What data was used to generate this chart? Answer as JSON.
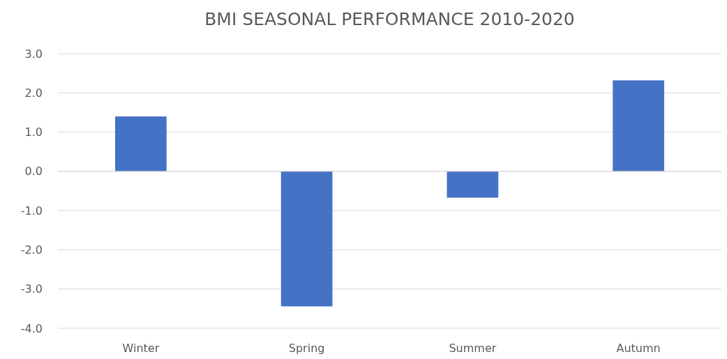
{
  "chart_data": {
    "type": "bar",
    "title": "BMI SEASONAL PERFORMANCE 2010-2020",
    "categories": [
      "Winter",
      "Spring",
      "Summer",
      "Autumn"
    ],
    "values": [
      1.4,
      -3.44,
      -0.67,
      2.32
    ],
    "color": "#4472c4",
    "ylim": [
      -4,
      3
    ],
    "yticks": [
      {
        "value": -4,
        "label": "-4.0"
      },
      {
        "value": -3,
        "label": "-3.0"
      },
      {
        "value": -2,
        "label": "-2.0"
      },
      {
        "value": -1,
        "label": "-1.0"
      },
      {
        "value": 0,
        "label": "0.0"
      },
      {
        "value": 1,
        "label": "1.0"
      },
      {
        "value": 2,
        "label": "2.0"
      },
      {
        "value": 3,
        "label": "3.0"
      }
    ],
    "grid": true
  }
}
